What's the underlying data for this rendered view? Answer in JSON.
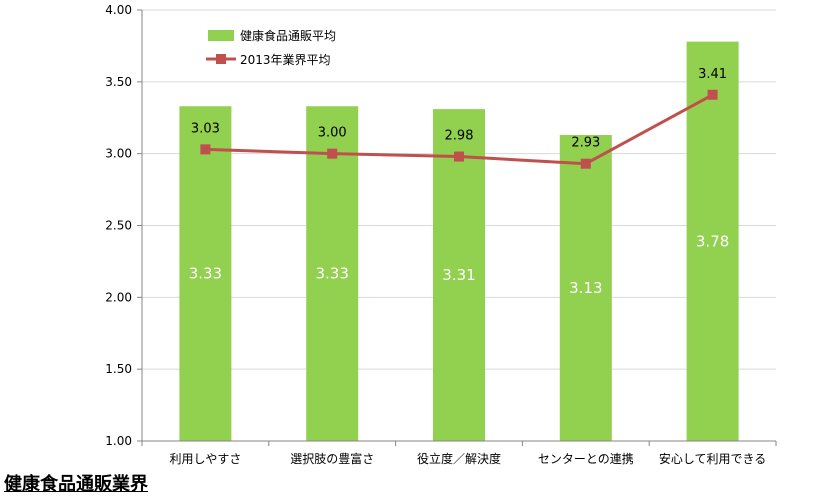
{
  "footer": {
    "title": "健康食品通販業界"
  },
  "colors": {
    "bar": "#92d050",
    "line": "#c0504d",
    "grid": "#d9d9d9",
    "axis": "#868686"
  },
  "chart_data": {
    "type": "bar",
    "categories": [
      "利用しやすさ",
      "選択肢の豊富さ",
      "役立度／解決度",
      "センターとの連携",
      "安心して利用できる"
    ],
    "series": [
      {
        "name": "健康食品通販平均",
        "type": "bar",
        "values": [
          3.33,
          3.33,
          3.31,
          3.13,
          3.78
        ],
        "labels": [
          "3.33",
          "3.33",
          "3.31",
          "3.13",
          "3.78"
        ]
      },
      {
        "name": "2013年業界平均",
        "type": "line",
        "values": [
          3.03,
          3.0,
          2.98,
          2.93,
          3.41
        ],
        "labels": [
          "3.03",
          "3.00",
          "2.98",
          "2.93",
          "3.41"
        ]
      }
    ],
    "ylim": [
      1.0,
      4.0
    ],
    "yticks": [
      "1.00",
      "1.50",
      "2.00",
      "2.50",
      "3.00",
      "3.50",
      "4.00"
    ],
    "grid": true,
    "legend": "top-left"
  }
}
